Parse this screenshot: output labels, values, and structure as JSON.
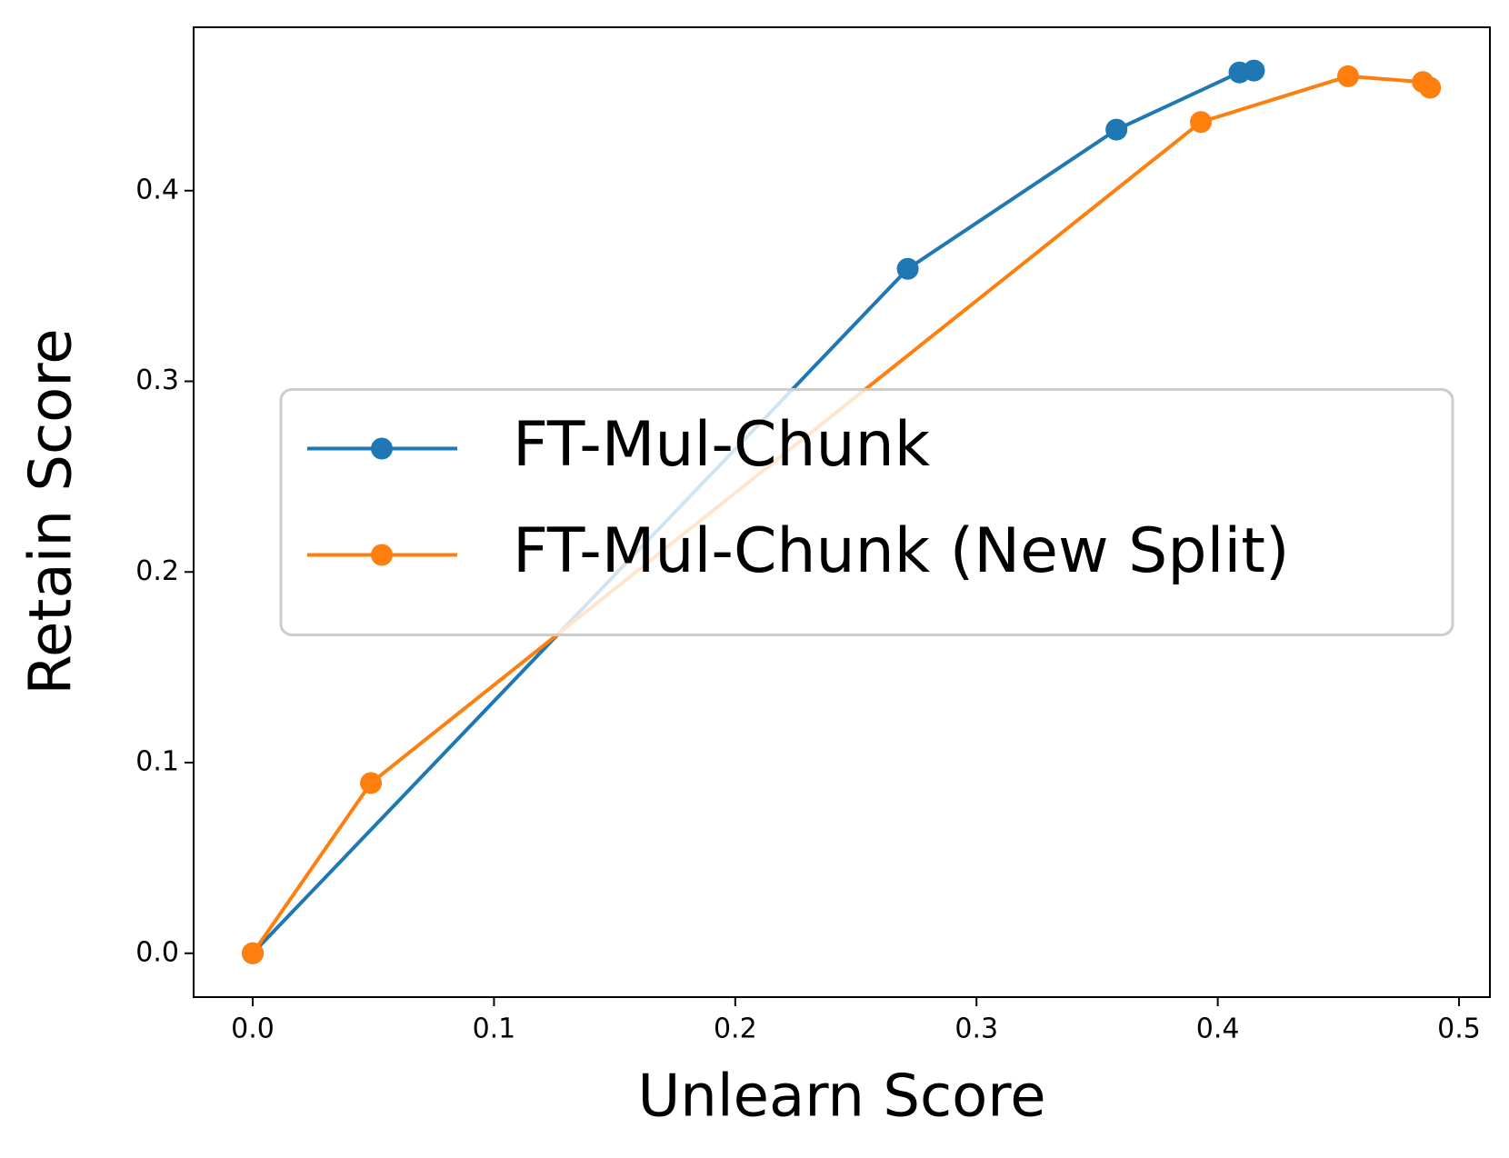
{
  "chart_data": {
    "type": "line",
    "xlabel": "Unlearn Score",
    "ylabel": "Retain Score",
    "xlim": [
      -0.0245,
      0.5128
    ],
    "ylim": [
      -0.023,
      0.4857
    ],
    "xticks": [
      {
        "value": 0,
        "label": "0.0"
      },
      0.1,
      0.2,
      0.3,
      0.4,
      0.5
    ],
    "yticks": [
      {
        "value": 0,
        "label": "0.0"
      },
      0.1,
      0.2,
      0.3,
      0.4
    ],
    "legend": "center right",
    "series": [
      {
        "name": "FT-Mul-Chunk",
        "color": "#1f77b4",
        "x": [
          0,
          0.2715,
          0.358,
          0.409,
          0.415
        ],
        "values": [
          0,
          0.359,
          0.432,
          0.462,
          0.463
        ]
      },
      {
        "name": "FT-Mul-Chunk (New Split)",
        "color": "#ff7f0e",
        "x": [
          0,
          0.049,
          0.393,
          0.454,
          0.485,
          0.488
        ],
        "values": [
          0,
          0.0893,
          0.436,
          0.46,
          0.457,
          0.454
        ]
      }
    ]
  }
}
